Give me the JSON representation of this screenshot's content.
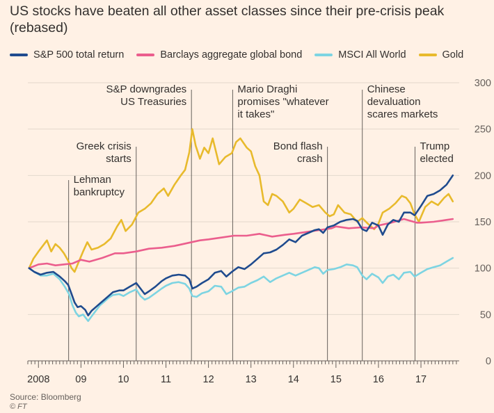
{
  "title": "US stocks have beaten all other asset classes since their pre-crisis peak (rebased)",
  "source": "Source: Bloomberg",
  "copyright": "© FT",
  "chart_data": {
    "type": "line",
    "xlim": [
      2007.75,
      2017.9
    ],
    "ylim": [
      0,
      300
    ],
    "y_ticks": [
      0,
      50,
      100,
      150,
      200,
      250,
      300
    ],
    "x_ticks": [
      {
        "value": 2008,
        "label": "2008"
      },
      {
        "value": 2009,
        "label": "09"
      },
      {
        "value": 2010,
        "label": "10"
      },
      {
        "value": 2011,
        "label": "11"
      },
      {
        "value": 2012,
        "label": "12"
      },
      {
        "value": 2013,
        "label": "13"
      },
      {
        "value": 2014,
        "label": "14"
      },
      {
        "value": 2015,
        "label": "15"
      },
      {
        "value": 2016,
        "label": "16"
      },
      {
        "value": 2017,
        "label": "17"
      }
    ],
    "grid": "horizontal",
    "legend_position": "top-left",
    "series": [
      {
        "name": "S&P 500 total return",
        "color": "#1f4b8e",
        "points": [
          [
            2007.78,
            100
          ],
          [
            2007.9,
            96
          ],
          [
            2008.05,
            93
          ],
          [
            2008.2,
            95
          ],
          [
            2008.35,
            96
          ],
          [
            2008.5,
            91
          ],
          [
            2008.62,
            86
          ],
          [
            2008.7,
            82
          ],
          [
            2008.78,
            72
          ],
          [
            2008.85,
            63
          ],
          [
            2008.92,
            58
          ],
          [
            2009.0,
            59
          ],
          [
            2009.1,
            55
          ],
          [
            2009.17,
            49
          ],
          [
            2009.25,
            54
          ],
          [
            2009.35,
            58
          ],
          [
            2009.45,
            62
          ],
          [
            2009.55,
            66
          ],
          [
            2009.65,
            70
          ],
          [
            2009.75,
            74
          ],
          [
            2009.9,
            76
          ],
          [
            2010.0,
            76
          ],
          [
            2010.15,
            80
          ],
          [
            2010.3,
            84
          ],
          [
            2010.4,
            78
          ],
          [
            2010.5,
            72
          ],
          [
            2010.6,
            75
          ],
          [
            2010.75,
            80
          ],
          [
            2010.9,
            86
          ],
          [
            2011.0,
            89
          ],
          [
            2011.15,
            92
          ],
          [
            2011.3,
            93
          ],
          [
            2011.45,
            92
          ],
          [
            2011.55,
            88
          ],
          [
            2011.62,
            78
          ],
          [
            2011.72,
            80
          ],
          [
            2011.85,
            84
          ],
          [
            2012.0,
            88
          ],
          [
            2012.15,
            95
          ],
          [
            2012.3,
            97
          ],
          [
            2012.42,
            91
          ],
          [
            2012.55,
            96
          ],
          [
            2012.7,
            101
          ],
          [
            2012.85,
            99
          ],
          [
            2013.0,
            104
          ],
          [
            2013.15,
            110
          ],
          [
            2013.3,
            116
          ],
          [
            2013.45,
            117
          ],
          [
            2013.6,
            120
          ],
          [
            2013.75,
            125
          ],
          [
            2013.9,
            131
          ],
          [
            2014.05,
            128
          ],
          [
            2014.2,
            135
          ],
          [
            2014.35,
            138
          ],
          [
            2014.5,
            141
          ],
          [
            2014.6,
            142
          ],
          [
            2014.7,
            138
          ],
          [
            2014.8,
            144
          ],
          [
            2014.95,
            146
          ],
          [
            2015.1,
            150
          ],
          [
            2015.25,
            152
          ],
          [
            2015.4,
            153
          ],
          [
            2015.5,
            151
          ],
          [
            2015.62,
            142
          ],
          [
            2015.72,
            140
          ],
          [
            2015.85,
            149
          ],
          [
            2016.0,
            146
          ],
          [
            2016.1,
            136
          ],
          [
            2016.22,
            147
          ],
          [
            2016.35,
            152
          ],
          [
            2016.48,
            150
          ],
          [
            2016.6,
            160
          ],
          [
            2016.75,
            160
          ],
          [
            2016.85,
            157
          ],
          [
            2017.0,
            167
          ],
          [
            2017.15,
            178
          ],
          [
            2017.3,
            180
          ],
          [
            2017.45,
            184
          ],
          [
            2017.6,
            190
          ],
          [
            2017.75,
            200
          ]
        ]
      },
      {
        "name": "Barclays aggregate global bond",
        "color": "#eb5e8d",
        "points": [
          [
            2007.78,
            100
          ],
          [
            2008.0,
            104
          ],
          [
            2008.2,
            105
          ],
          [
            2008.4,
            103
          ],
          [
            2008.6,
            104
          ],
          [
            2008.8,
            105
          ],
          [
            2009.0,
            109
          ],
          [
            2009.2,
            107
          ],
          [
            2009.5,
            111
          ],
          [
            2009.8,
            116
          ],
          [
            2010.0,
            116
          ],
          [
            2010.3,
            118
          ],
          [
            2010.6,
            121
          ],
          [
            2010.9,
            122
          ],
          [
            2011.2,
            124
          ],
          [
            2011.5,
            127
          ],
          [
            2011.8,
            130
          ],
          [
            2012.0,
            131
          ],
          [
            2012.3,
            133
          ],
          [
            2012.6,
            135
          ],
          [
            2012.9,
            135
          ],
          [
            2013.2,
            137
          ],
          [
            2013.5,
            134
          ],
          [
            2013.8,
            136
          ],
          [
            2014.0,
            137
          ],
          [
            2014.3,
            139
          ],
          [
            2014.6,
            141
          ],
          [
            2014.9,
            143
          ],
          [
            2015.0,
            145
          ],
          [
            2015.3,
            143
          ],
          [
            2015.6,
            144
          ],
          [
            2015.9,
            143
          ],
          [
            2016.0,
            146
          ],
          [
            2016.3,
            149
          ],
          [
            2016.6,
            153
          ],
          [
            2016.9,
            149
          ],
          [
            2017.0,
            149
          ],
          [
            2017.3,
            150
          ],
          [
            2017.6,
            152
          ],
          [
            2017.75,
            153
          ]
        ]
      },
      {
        "name": "MSCI All World",
        "color": "#7dd4e2",
        "points": [
          [
            2007.78,
            100
          ],
          [
            2007.9,
            96
          ],
          [
            2008.05,
            92
          ],
          [
            2008.2,
            92
          ],
          [
            2008.35,
            94
          ],
          [
            2008.5,
            88
          ],
          [
            2008.62,
            80
          ],
          [
            2008.72,
            72
          ],
          [
            2008.8,
            60
          ],
          [
            2008.88,
            52
          ],
          [
            2008.95,
            48
          ],
          [
            2009.05,
            50
          ],
          [
            2009.17,
            43
          ],
          [
            2009.25,
            48
          ],
          [
            2009.35,
            54
          ],
          [
            2009.45,
            60
          ],
          [
            2009.55,
            64
          ],
          [
            2009.65,
            68
          ],
          [
            2009.75,
            71
          ],
          [
            2009.9,
            72
          ],
          [
            2010.0,
            70
          ],
          [
            2010.15,
            74
          ],
          [
            2010.3,
            77
          ],
          [
            2010.4,
            70
          ],
          [
            2010.5,
            66
          ],
          [
            2010.6,
            68
          ],
          [
            2010.75,
            73
          ],
          [
            2010.9,
            78
          ],
          [
            2011.0,
            81
          ],
          [
            2011.15,
            84
          ],
          [
            2011.3,
            85
          ],
          [
            2011.45,
            83
          ],
          [
            2011.55,
            78
          ],
          [
            2011.62,
            70
          ],
          [
            2011.72,
            69
          ],
          [
            2011.85,
            73
          ],
          [
            2012.0,
            75
          ],
          [
            2012.15,
            81
          ],
          [
            2012.3,
            80
          ],
          [
            2012.42,
            72
          ],
          [
            2012.55,
            75
          ],
          [
            2012.7,
            79
          ],
          [
            2012.85,
            80
          ],
          [
            2013.0,
            84
          ],
          [
            2013.15,
            87
          ],
          [
            2013.3,
            91
          ],
          [
            2013.45,
            85
          ],
          [
            2013.6,
            89
          ],
          [
            2013.75,
            92
          ],
          [
            2013.9,
            95
          ],
          [
            2014.05,
            92
          ],
          [
            2014.2,
            95
          ],
          [
            2014.35,
            98
          ],
          [
            2014.5,
            101
          ],
          [
            2014.6,
            100
          ],
          [
            2014.7,
            94
          ],
          [
            2014.8,
            98
          ],
          [
            2014.95,
            99
          ],
          [
            2015.1,
            101
          ],
          [
            2015.25,
            104
          ],
          [
            2015.4,
            103
          ],
          [
            2015.5,
            101
          ],
          [
            2015.62,
            92
          ],
          [
            2015.72,
            88
          ],
          [
            2015.85,
            94
          ],
          [
            2016.0,
            90
          ],
          [
            2016.1,
            84
          ],
          [
            2016.22,
            91
          ],
          [
            2016.35,
            93
          ],
          [
            2016.48,
            88
          ],
          [
            2016.6,
            95
          ],
          [
            2016.75,
            96
          ],
          [
            2016.85,
            91
          ],
          [
            2017.0,
            95
          ],
          [
            2017.15,
            99
          ],
          [
            2017.3,
            101
          ],
          [
            2017.45,
            103
          ],
          [
            2017.6,
            107
          ],
          [
            2017.75,
            111
          ]
        ]
      },
      {
        "name": "Gold",
        "color": "#e8ba2c",
        "points": [
          [
            2007.78,
            100
          ],
          [
            2007.88,
            110
          ],
          [
            2008.0,
            118
          ],
          [
            2008.1,
            124
          ],
          [
            2008.2,
            130
          ],
          [
            2008.3,
            118
          ],
          [
            2008.4,
            126
          ],
          [
            2008.5,
            122
          ],
          [
            2008.6,
            116
          ],
          [
            2008.7,
            108
          ],
          [
            2008.78,
            100
          ],
          [
            2008.85,
            96
          ],
          [
            2008.95,
            107
          ],
          [
            2009.05,
            118
          ],
          [
            2009.15,
            128
          ],
          [
            2009.25,
            120
          ],
          [
            2009.4,
            122
          ],
          [
            2009.55,
            126
          ],
          [
            2009.7,
            132
          ],
          [
            2009.85,
            145
          ],
          [
            2009.95,
            152
          ],
          [
            2010.05,
            140
          ],
          [
            2010.2,
            147
          ],
          [
            2010.35,
            160
          ],
          [
            2010.5,
            164
          ],
          [
            2010.65,
            170
          ],
          [
            2010.8,
            180
          ],
          [
            2010.95,
            186
          ],
          [
            2011.05,
            178
          ],
          [
            2011.2,
            190
          ],
          [
            2011.35,
            200
          ],
          [
            2011.45,
            206
          ],
          [
            2011.55,
            225
          ],
          [
            2011.62,
            250
          ],
          [
            2011.7,
            232
          ],
          [
            2011.8,
            218
          ],
          [
            2011.9,
            230
          ],
          [
            2012.0,
            224
          ],
          [
            2012.1,
            240
          ],
          [
            2012.25,
            212
          ],
          [
            2012.4,
            220
          ],
          [
            2012.55,
            224
          ],
          [
            2012.65,
            236
          ],
          [
            2012.75,
            240
          ],
          [
            2012.9,
            230
          ],
          [
            2013.0,
            226
          ],
          [
            2013.1,
            210
          ],
          [
            2013.2,
            200
          ],
          [
            2013.3,
            172
          ],
          [
            2013.4,
            168
          ],
          [
            2013.5,
            180
          ],
          [
            2013.6,
            178
          ],
          [
            2013.75,
            172
          ],
          [
            2013.9,
            160
          ],
          [
            2014.0,
            164
          ],
          [
            2014.15,
            174
          ],
          [
            2014.3,
            170
          ],
          [
            2014.45,
            166
          ],
          [
            2014.6,
            168
          ],
          [
            2014.75,
            160
          ],
          [
            2014.85,
            156
          ],
          [
            2014.95,
            158
          ],
          [
            2015.05,
            168
          ],
          [
            2015.2,
            160
          ],
          [
            2015.35,
            158
          ],
          [
            2015.5,
            150
          ],
          [
            2015.62,
            154
          ],
          [
            2015.75,
            148
          ],
          [
            2015.9,
            142
          ],
          [
            2016.0,
            148
          ],
          [
            2016.1,
            160
          ],
          [
            2016.25,
            164
          ],
          [
            2016.4,
            170
          ],
          [
            2016.55,
            178
          ],
          [
            2016.65,
            176
          ],
          [
            2016.75,
            170
          ],
          [
            2016.85,
            158
          ],
          [
            2016.95,
            150
          ],
          [
            2017.1,
            166
          ],
          [
            2017.25,
            172
          ],
          [
            2017.4,
            168
          ],
          [
            2017.55,
            176
          ],
          [
            2017.65,
            180
          ],
          [
            2017.75,
            172
          ]
        ]
      }
    ],
    "annotations": [
      {
        "x": 2008.71,
        "lines": [
          "Lehman",
          "bankruptcy"
        ],
        "align": "left"
      },
      {
        "x": 2010.3,
        "lines": [
          "Greek crisis",
          "starts"
        ],
        "align": "right"
      },
      {
        "x": 2011.6,
        "lines": [
          "S&P downgrades",
          "US Treasuries"
        ],
        "align": "right"
      },
      {
        "x": 2012.57,
        "lines": [
          "Mario Draghi",
          "promises \"whatever",
          "it takes\""
        ],
        "align": "left"
      },
      {
        "x": 2014.8,
        "lines": [
          "Bond flash",
          "crash"
        ],
        "align": "right"
      },
      {
        "x": 2015.62,
        "lines": [
          "Chinese",
          "devaluation",
          "scares markets"
        ],
        "align": "left"
      },
      {
        "x": 2016.86,
        "lines": [
          "Trump",
          "elected"
        ],
        "align": "left"
      }
    ]
  }
}
